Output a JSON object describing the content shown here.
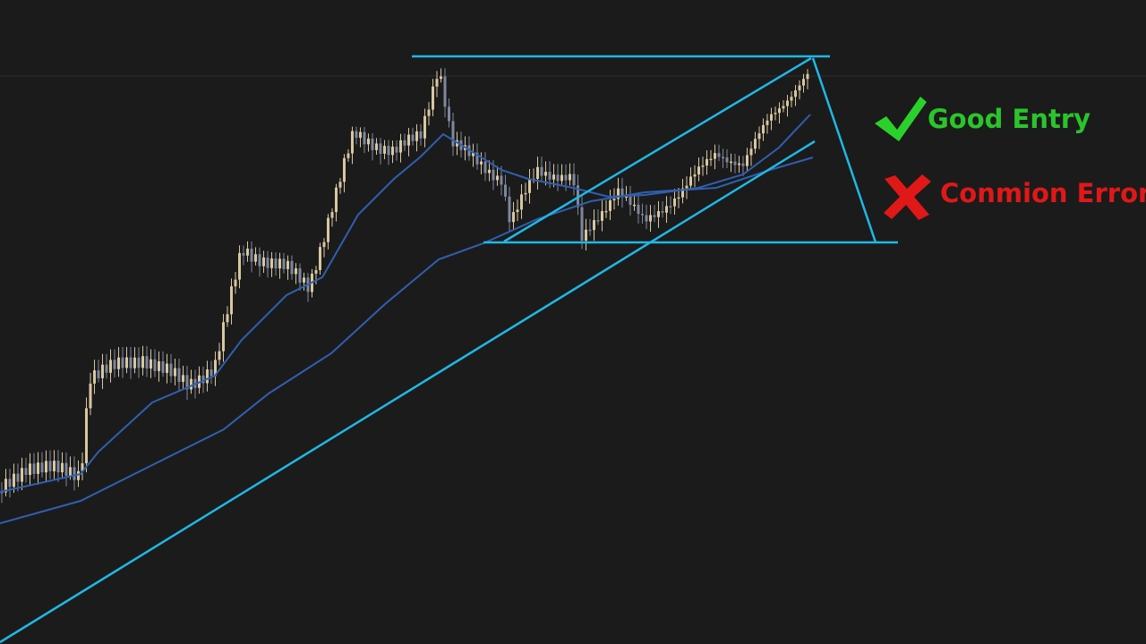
{
  "annotations": {
    "good": "Good Entry",
    "error": "Conmion Error"
  }
}
